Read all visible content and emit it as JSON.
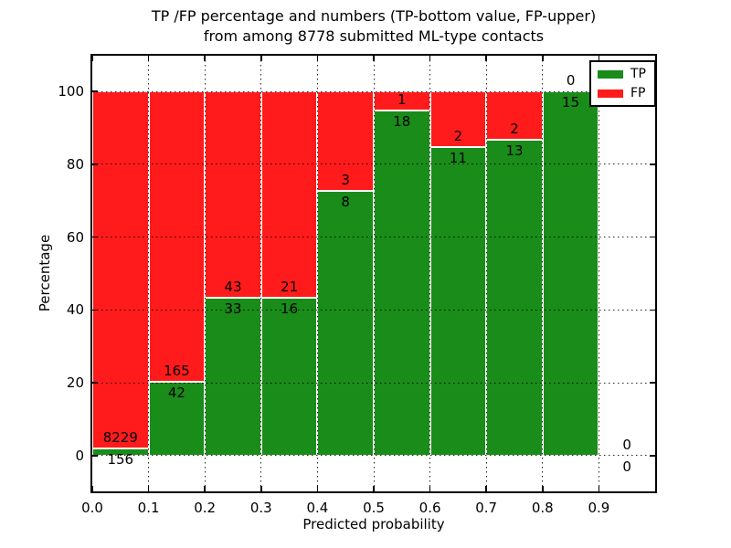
{
  "title": {
    "line1": "TP /FP percentage and numbers (TP-bottom value, FP-upper)",
    "line2": "from among 8778 submitted ML-type contacts"
  },
  "chart_data": {
    "type": "bar",
    "stacked": true,
    "title": "TP /FP percentage and numbers (TP-bottom value, FP-upper) from among 8778 submitted ML-type contacts",
    "xlabel": "Predicted probability",
    "ylabel": "Percentage",
    "total_contacts": 8778,
    "xlim": [
      0.0,
      1.0
    ],
    "ylim": [
      -9.8,
      109.8
    ],
    "xticks": {
      "values": [
        0.0,
        0.1,
        0.2,
        0.3,
        0.4,
        0.5,
        0.6,
        0.7,
        0.8,
        0.9
      ],
      "labels": [
        "0.0",
        "0.1",
        "0.2",
        "0.3",
        "0.4",
        "0.5",
        "0.6",
        "0.7",
        "0.8",
        "0.9"
      ]
    },
    "yticks": {
      "values": [
        0,
        20,
        40,
        60,
        80,
        100
      ],
      "labels": [
        "0",
        "20",
        "40",
        "60",
        "80",
        "100"
      ]
    },
    "bins": [
      [
        0.0,
        0.1
      ],
      [
        0.1,
        0.2
      ],
      [
        0.2,
        0.3
      ],
      [
        0.3,
        0.4
      ],
      [
        0.4,
        0.5
      ],
      [
        0.5,
        0.6
      ],
      [
        0.6,
        0.7
      ],
      [
        0.7,
        0.8
      ],
      [
        0.8,
        0.9
      ],
      [
        0.9,
        1.0
      ]
    ],
    "series": [
      {
        "name": "TP",
        "color": "#1a8c1a",
        "counts": [
          156,
          42,
          33,
          16,
          8,
          18,
          11,
          13,
          15,
          0
        ]
      },
      {
        "name": "FP",
        "color": "#ff1b1b",
        "counts": [
          8229,
          165,
          43,
          21,
          3,
          1,
          2,
          2,
          0,
          0
        ]
      }
    ],
    "tp_percent": [
      1.86,
      20.29,
      43.42,
      43.24,
      72.73,
      94.74,
      84.62,
      86.67,
      100.0,
      null
    ],
    "legend": {
      "position": "upper right",
      "entries": [
        "TP",
        "FP"
      ]
    },
    "grid": "dotted"
  },
  "colors": {
    "tp": "#1a8c1a",
    "fp": "#ff1b1b",
    "grid": "#000000",
    "background": "#ffffff"
  }
}
